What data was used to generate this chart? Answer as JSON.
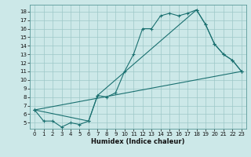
{
  "title": "",
  "xlabel": "Humidex (Indice chaleur)",
  "bg_color": "#cce8e8",
  "line_color": "#1a7070",
  "line1_x": [
    0,
    1,
    2,
    3,
    4,
    5,
    6,
    7,
    8,
    9,
    10,
    11,
    12,
    13,
    14,
    15,
    16,
    17,
    18,
    19,
    20,
    21,
    22,
    23
  ],
  "line1_y": [
    6.5,
    5.2,
    5.2,
    4.5,
    5.0,
    4.8,
    5.2,
    8.2,
    8.0,
    8.5,
    11.0,
    13.0,
    16.0,
    16.0,
    17.5,
    17.8,
    17.5,
    17.8,
    18.2,
    16.5,
    14.2,
    13.0,
    12.3,
    11.0
  ],
  "line2_x": [
    0,
    6,
    7,
    18,
    19,
    20,
    21,
    22,
    23
  ],
  "line2_y": [
    6.5,
    5.2,
    8.2,
    18.2,
    16.5,
    14.2,
    13.0,
    12.3,
    11.0
  ],
  "line3_x": [
    0,
    23
  ],
  "line3_y": [
    6.5,
    11.0
  ],
  "ylim": [
    4.3,
    18.8
  ],
  "xlim": [
    -0.5,
    23.5
  ],
  "yticks": [
    5,
    6,
    7,
    8,
    9,
    10,
    11,
    12,
    13,
    14,
    15,
    16,
    17,
    18
  ],
  "xticks": [
    0,
    1,
    2,
    3,
    4,
    5,
    6,
    7,
    8,
    9,
    10,
    11,
    12,
    13,
    14,
    15,
    16,
    17,
    18,
    19,
    20,
    21,
    22,
    23
  ],
  "tick_fontsize": 5,
  "xlabel_fontsize": 6,
  "marker_size": 3,
  "linewidth": 0.8
}
